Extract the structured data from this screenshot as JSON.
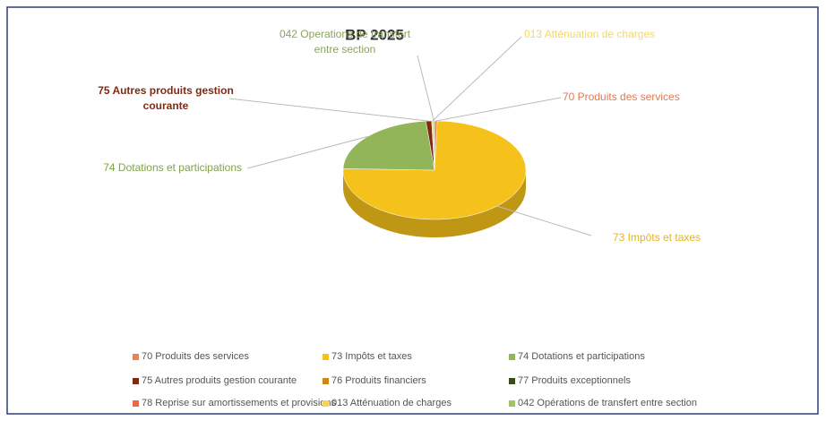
{
  "chart_data": {
    "type": "pie3d",
    "title": "BP 2025",
    "categories": [
      "70 Produits des services",
      "73 Impôts et taxes",
      "74 Dotations et participations",
      "75 Autres produits gestion courante",
      "76 Produits financiers",
      "77 Produits exceptionnels",
      "78 Reprise sur amortissements et provisions",
      "013 Atténuation de charges",
      "042 Opérations de transfert entre section"
    ],
    "labels": [
      "70 Produits des services",
      "73 Impôts et taxes",
      "74 Dotations et participations",
      "75 Autres produits gestion courante",
      null,
      null,
      null,
      "013 Atténuation de charges",
      "042 Operations de transfert entre section"
    ],
    "values": [
      0.5,
      75,
      23,
      1,
      0,
      0,
      0,
      0.3,
      0.2
    ],
    "colors": [
      "#e8845a",
      "#f5c21b",
      "#93b55a",
      "#7f2b14",
      "#c98a1a",
      "#3b4a1c",
      "#e86a4a",
      "#f4d35e",
      "#a6c06a"
    ],
    "legend": "bottom"
  }
}
